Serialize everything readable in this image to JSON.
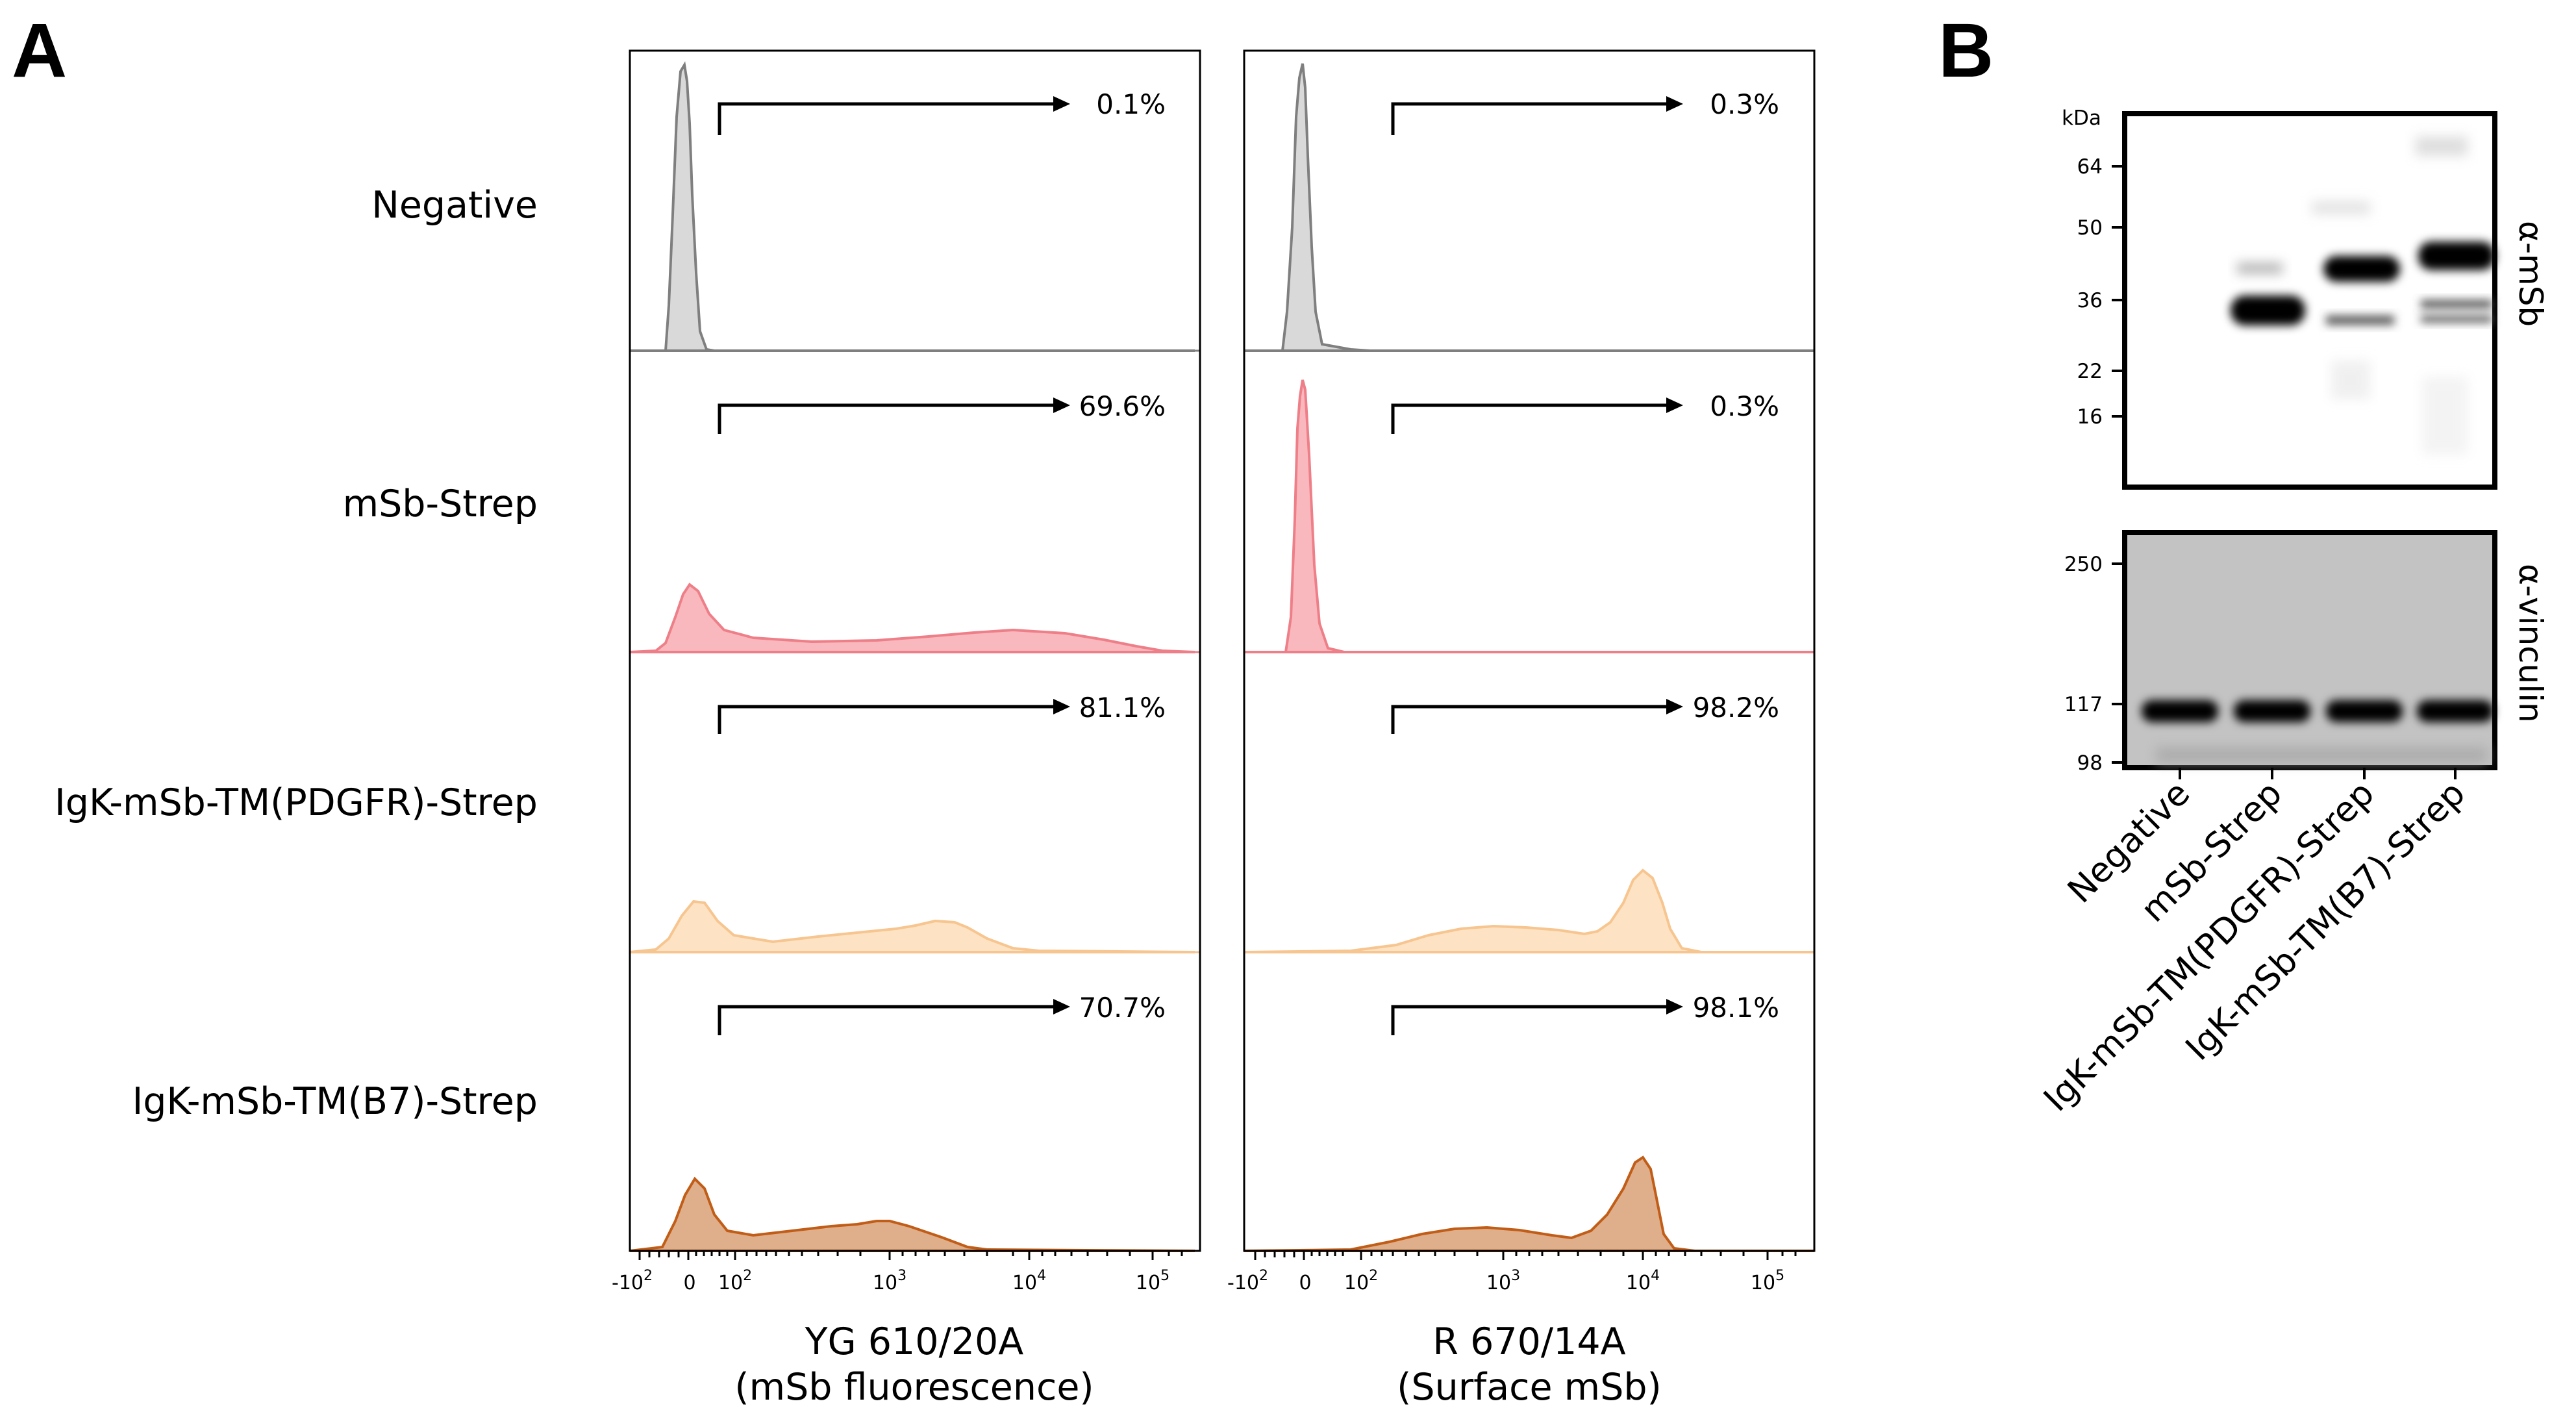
{
  "panels": {
    "a": "A",
    "b": "B"
  },
  "flow": {
    "samples": [
      {
        "label": "Negative",
        "color_fill": "#d9d9d9",
        "color_line": "#7f7f7f",
        "gate_left": "0.1%",
        "gate_right": "0.3%"
      },
      {
        "label": "mSb-Strep",
        "color_fill": "#f8b8bd",
        "color_line": "#ee7f88",
        "gate_left": "69.6%",
        "gate_right": "0.3%"
      },
      {
        "label": "IgK-mSb-TM(PDGFR)-Strep",
        "color_fill": "#fde3c4",
        "color_line": "#f7c58f",
        "gate_left": "81.1%",
        "gate_right": "98.2%"
      },
      {
        "label": "IgK-mSb-TM(B7)-Strep",
        "color_fill": "#dfae8a",
        "color_line": "#c15d17",
        "gate_left": "70.7%",
        "gate_right": "98.1%"
      }
    ],
    "ticks": [
      {
        "base": "-10",
        "exp": "2"
      },
      {
        "base": "0",
        "exp": ""
      },
      {
        "base": "10",
        "exp": "2"
      },
      {
        "base": "10",
        "exp": "3"
      },
      {
        "base": "10",
        "exp": "4"
      },
      {
        "base": "10",
        "exp": "5"
      }
    ],
    "axes": [
      {
        "line1": "YG 610/20A",
        "line2": "(mSb fluorescence)"
      },
      {
        "line1": "R 670/14A",
        "line2": "(Surface mSb)"
      }
    ]
  },
  "western": {
    "kda_label": "kDa",
    "top": {
      "antibody": "α-mSb",
      "markers": [
        "64",
        "50",
        "36",
        "22",
        "16"
      ]
    },
    "bottom": {
      "antibody": "α-vinculin",
      "markers": [
        "250",
        "117",
        "98"
      ]
    },
    "lanes": [
      "Negative",
      "mSb-Strep",
      "IgK-mSb-TM(PDGFR)-Strep",
      "IgK-mSb-TM(B7)-Strep"
    ]
  }
}
